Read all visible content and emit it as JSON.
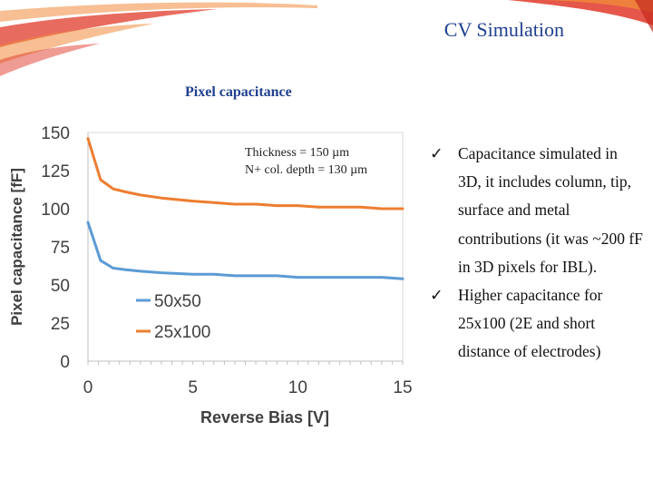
{
  "slide": {
    "title": "CV Simulation",
    "section_label": "Pixel capacitance",
    "colors": {
      "title": "#1f3f8f",
      "swoosh_red": "#e03a2a",
      "swoosh_orange": "#f08a3a"
    }
  },
  "notes": {
    "check_icon": "check-icon",
    "items": [
      "Capacitance simulated in 3D, it includes column, tip, surface and metal contributions (it was ~200 fF in 3D pixels for IBL).",
      "Higher capacitance for 25x100 (2E and short distance of electrodes)"
    ]
  },
  "chart_data": {
    "type": "line",
    "xlabel": "Reverse Bias [V]",
    "ylabel": "Pixel capacitance [fF]",
    "xlim": [
      0,
      15
    ],
    "ylim": [
      0,
      150
    ],
    "x_ticks": [
      0,
      5,
      10,
      15
    ],
    "y_ticks": [
      0,
      25,
      50,
      75,
      100,
      125,
      150
    ],
    "grid": false,
    "legend_position": "bottom-left",
    "annotations": [
      "Thickness = 150 µm",
      "N+ col. depth = 130 µm"
    ],
    "series": [
      {
        "name": "50x50",
        "color": "#5b9bd5",
        "x": [
          0,
          0.6,
          1.2,
          1.8,
          2.5,
          3.5,
          5,
          6,
          7,
          8,
          9,
          10,
          11,
          12,
          13,
          14,
          15
        ],
        "y": [
          91,
          66,
          61,
          60,
          59,
          58,
          57,
          57,
          56,
          56,
          56,
          55,
          55,
          55,
          55,
          55,
          54
        ]
      },
      {
        "name": "25x100",
        "color": "#ed7d31",
        "x": [
          0,
          0.6,
          1.2,
          1.8,
          2.5,
          3.5,
          5,
          6,
          7,
          8,
          9,
          10,
          11,
          12,
          13,
          14,
          15
        ],
        "y": [
          146,
          119,
          113,
          111,
          109,
          107,
          105,
          104,
          103,
          103,
          102,
          102,
          101,
          101,
          101,
          100,
          100
        ]
      }
    ]
  }
}
